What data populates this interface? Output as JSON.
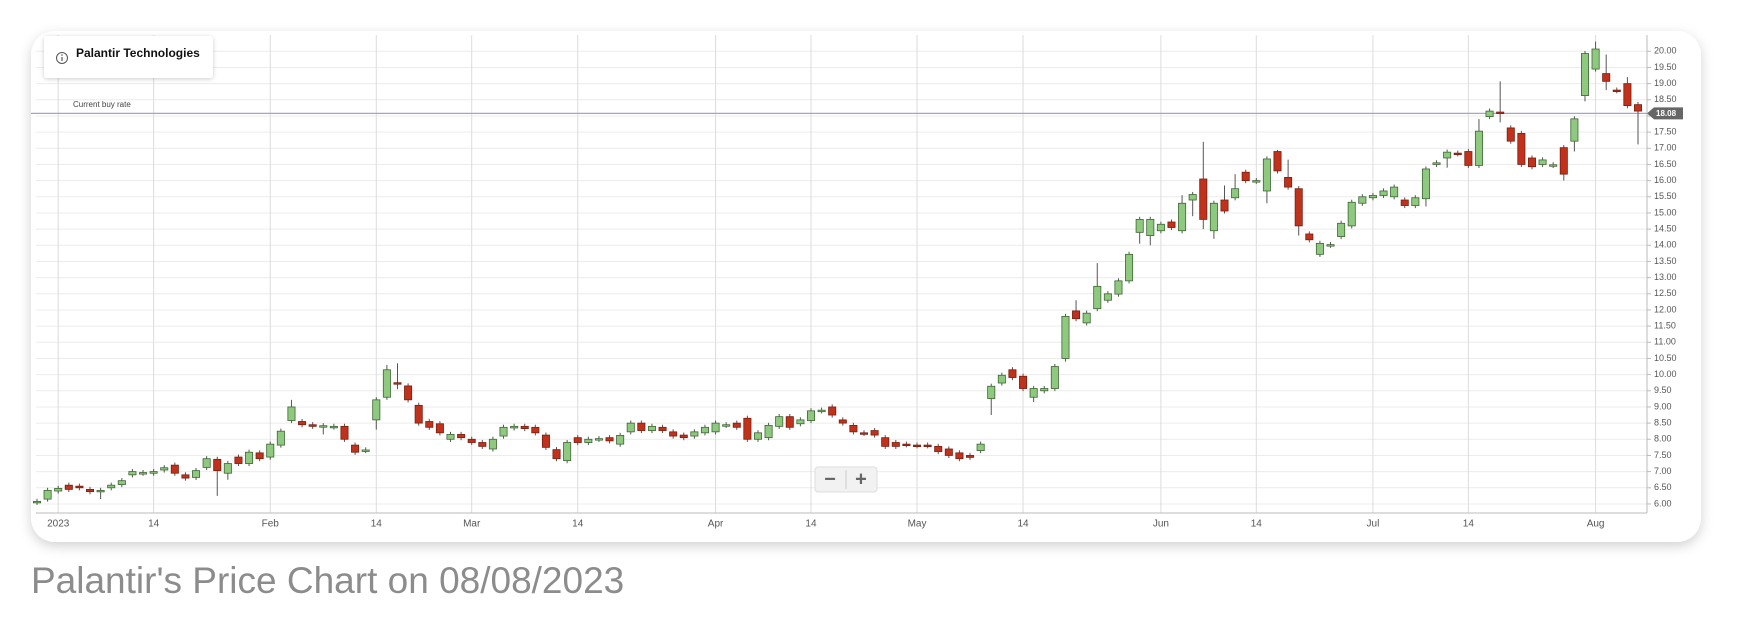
{
  "caption": "Palantir's Price Chart on 08/08/2023",
  "controls": [
    "−",
    "+"
  ],
  "chart_data": {
    "type": "candlestick",
    "categories": [
      null,
      null,
      "2023",
      null,
      null,
      null,
      null,
      null,
      null,
      null,
      null,
      "14",
      null,
      null,
      null,
      null,
      null,
      null,
      null,
      null,
      null,
      null,
      "Feb",
      null,
      null,
      null,
      null,
      null,
      null,
      null,
      null,
      null,
      "14",
      null,
      null,
      null,
      null,
      null,
      null,
      null,
      null,
      "Mar",
      null,
      null,
      null,
      null,
      null,
      null,
      null,
      null,
      null,
      "14",
      null,
      null,
      null,
      null,
      null,
      null,
      null,
      null,
      null,
      null,
      null,
      null,
      "Apr",
      null,
      null,
      null,
      null,
      null,
      null,
      null,
      null,
      "14",
      null,
      null,
      null,
      null,
      null,
      null,
      null,
      null,
      null,
      "May",
      null,
      null,
      null,
      null,
      null,
      null,
      null,
      null,
      null,
      "14",
      null,
      null,
      null,
      null,
      null,
      null,
      null,
      null,
      null,
      null,
      null,
      null,
      "Jun",
      null,
      null,
      null,
      null,
      null,
      null,
      null,
      null,
      "14",
      null,
      null,
      null,
      null,
      null,
      null,
      null,
      null,
      null,
      null,
      "Jul",
      null,
      null,
      null,
      null,
      null,
      null,
      null,
      null,
      "14",
      null,
      null,
      null,
      null,
      null,
      null,
      null,
      null,
      null,
      null,
      null,
      "Aug",
      null,
      null,
      null,
      null
    ],
    "series": [
      {
        "name": "Palantir Technologies",
        "up_color": "#8fc97f",
        "down_color": "#c0321c",
        "open": [
          6.05,
          6.15,
          6.4,
          6.58,
          6.55,
          6.45,
          6.4,
          6.5,
          6.6,
          6.9,
          6.95,
          6.95,
          7.05,
          7.2,
          6.9,
          6.82,
          7.13,
          7.38,
          6.95,
          7.45,
          7.25,
          7.58,
          7.45,
          7.82,
          8.58,
          8.55,
          8.45,
          8.4,
          8.38,
          8.4,
          7.82,
          7.65,
          8.6,
          9.3,
          9.75,
          9.65,
          9.05,
          8.55,
          8.48,
          8.0,
          8.15,
          8.0,
          7.9,
          7.7,
          8.1,
          8.35,
          8.4,
          8.37,
          8.13,
          7.68,
          7.34,
          8.05,
          7.9,
          8.0,
          8.05,
          7.85,
          8.23,
          8.5,
          8.27,
          8.37,
          8.23,
          8.13,
          8.1,
          8.2,
          8.23,
          8.43,
          8.5,
          8.65,
          8.0,
          8.05,
          8.4,
          8.7,
          8.48,
          8.58,
          8.88,
          9.0,
          8.6,
          8.43,
          8.2,
          8.27,
          8.05,
          7.9,
          7.85,
          7.82,
          7.82,
          7.78,
          7.7,
          7.58,
          7.5,
          7.65,
          9.26,
          9.74,
          10.15,
          9.95,
          9.3,
          9.5,
          9.57,
          10.5,
          11.97,
          11.6,
          12.04,
          12.3,
          12.49,
          12.9,
          14.4,
          14.3,
          14.45,
          14.72,
          14.45,
          15.4,
          16.05,
          14.45,
          15.4,
          15.47,
          16.26,
          15.98,
          15.68,
          16.9,
          16.1,
          15.75,
          14.35,
          13.72,
          14.0,
          14.27,
          14.6,
          15.3,
          15.47,
          15.54,
          15.5,
          15.4,
          15.23,
          15.44,
          16.5,
          16.7,
          16.85,
          16.9,
          16.47,
          17.98,
          18.12,
          17.63,
          17.46,
          16.7,
          16.5,
          16.47,
          17.02,
          17.22,
          18.63,
          19.45,
          19.31,
          18.8,
          19.0,
          18.35
        ],
        "high": [
          6.16,
          6.5,
          6.56,
          6.66,
          6.63,
          6.53,
          6.5,
          6.66,
          6.8,
          7.08,
          7.05,
          7.08,
          7.2,
          7.28,
          6.98,
          7.11,
          7.48,
          7.46,
          7.33,
          7.53,
          7.68,
          7.66,
          7.93,
          8.33,
          9.22,
          8.63,
          8.53,
          8.5,
          8.48,
          8.48,
          7.9,
          7.75,
          9.3,
          10.3,
          10.35,
          9.73,
          9.13,
          8.63,
          8.56,
          8.23,
          8.23,
          8.08,
          7.98,
          8.08,
          8.45,
          8.48,
          8.48,
          8.45,
          8.21,
          7.76,
          7.98,
          8.13,
          8.08,
          8.1,
          8.13,
          8.2,
          8.58,
          8.58,
          8.48,
          8.45,
          8.31,
          8.21,
          8.31,
          8.45,
          8.58,
          8.53,
          8.58,
          8.73,
          8.28,
          8.51,
          8.78,
          8.78,
          8.68,
          8.96,
          8.98,
          9.08,
          8.68,
          8.51,
          8.28,
          8.35,
          8.13,
          7.98,
          7.93,
          7.9,
          7.9,
          7.86,
          7.78,
          7.66,
          7.58,
          7.93,
          9.72,
          10.06,
          10.23,
          10.03,
          9.65,
          9.65,
          10.33,
          11.88,
          12.3,
          11.98,
          13.45,
          12.58,
          12.98,
          13.8,
          14.88,
          14.88,
          14.73,
          14.8,
          15.55,
          15.65,
          17.2,
          15.38,
          15.85,
          16.2,
          16.34,
          16.08,
          16.75,
          16.95,
          16.65,
          15.83,
          14.43,
          14.14,
          14.1,
          14.76,
          15.41,
          15.58,
          15.62,
          15.76,
          15.88,
          15.48,
          15.55,
          16.44,
          16.63,
          16.96,
          16.93,
          16.98,
          17.9,
          18.23,
          19.07,
          17.71,
          17.54,
          16.78,
          16.72,
          16.57,
          17.1,
          17.99,
          20.01,
          20.3,
          19.9,
          18.88,
          19.2,
          18.43
        ],
        "low": [
          5.97,
          6.07,
          6.32,
          6.37,
          6.42,
          6.3,
          6.15,
          6.42,
          6.52,
          6.82,
          6.87,
          6.87,
          6.97,
          6.87,
          6.72,
          6.74,
          7.05,
          6.25,
          6.75,
          7.17,
          7.17,
          7.32,
          7.37,
          7.74,
          8.5,
          8.37,
          8.32,
          8.15,
          8.3,
          7.92,
          7.52,
          7.57,
          8.3,
          9.22,
          9.55,
          9.14,
          8.42,
          8.29,
          8.12,
          7.92,
          7.97,
          7.82,
          7.7,
          7.62,
          8.02,
          8.27,
          8.25,
          8.12,
          7.67,
          7.32,
          7.26,
          7.82,
          7.82,
          7.92,
          7.87,
          7.77,
          8.15,
          8.19,
          8.19,
          8.19,
          8.02,
          7.97,
          8.02,
          8.12,
          8.15,
          8.35,
          8.29,
          7.92,
          7.92,
          7.97,
          8.32,
          8.29,
          8.4,
          8.5,
          8.8,
          8.67,
          8.42,
          8.15,
          8.1,
          8.05,
          7.7,
          7.7,
          7.75,
          7.72,
          7.72,
          7.54,
          7.42,
          7.32,
          7.36,
          7.57,
          8.75,
          9.66,
          9.83,
          9.49,
          9.15,
          9.42,
          9.49,
          10.4,
          11.65,
          11.52,
          11.96,
          12.22,
          12.41,
          12.82,
          14.05,
          14.0,
          14.37,
          14.47,
          14.37,
          14.9,
          14.5,
          14.2,
          14.98,
          15.39,
          15.92,
          15.9,
          15.3,
          16.22,
          15.72,
          14.3,
          14.09,
          13.64,
          13.92,
          14.19,
          14.52,
          15.22,
          15.39,
          15.46,
          15.42,
          15.15,
          15.15,
          15.2,
          16.42,
          16.4,
          16.75,
          16.39,
          16.39,
          17.9,
          17.8,
          17.14,
          16.42,
          16.35,
          16.42,
          16.39,
          16.0,
          16.9,
          18.45,
          19.37,
          18.8,
          18.7,
          18.24,
          17.12
        ],
        "close": [
          6.08,
          6.42,
          6.48,
          6.45,
          6.5,
          6.38,
          6.42,
          6.58,
          6.72,
          7.0,
          6.97,
          7.0,
          7.12,
          6.95,
          6.8,
          7.03,
          7.4,
          7.03,
          7.25,
          7.25,
          7.6,
          7.4,
          7.85,
          8.25,
          9.0,
          8.45,
          8.4,
          8.42,
          8.4,
          8.0,
          7.6,
          7.67,
          9.22,
          10.15,
          9.72,
          9.22,
          8.5,
          8.37,
          8.2,
          8.15,
          8.05,
          7.9,
          7.78,
          8.0,
          8.37,
          8.4,
          8.33,
          8.2,
          7.75,
          7.4,
          7.9,
          7.9,
          8.0,
          8.02,
          7.95,
          8.12,
          8.5,
          8.27,
          8.4,
          8.27,
          8.1,
          8.05,
          8.23,
          8.37,
          8.5,
          8.45,
          8.37,
          8.0,
          8.2,
          8.43,
          8.7,
          8.37,
          8.6,
          8.88,
          8.9,
          8.75,
          8.5,
          8.23,
          8.18,
          8.13,
          7.78,
          7.78,
          7.83,
          7.8,
          7.8,
          7.62,
          7.5,
          7.4,
          7.44,
          7.85,
          9.64,
          9.98,
          9.91,
          9.57,
          9.57,
          9.57,
          10.25,
          11.8,
          11.73,
          11.9,
          12.73,
          12.5,
          12.9,
          13.72,
          14.8,
          14.8,
          14.65,
          14.55,
          15.3,
          15.57,
          14.8,
          15.3,
          15.06,
          15.75,
          16.0,
          16.0,
          16.67,
          16.3,
          15.8,
          14.6,
          14.17,
          14.06,
          14.02,
          14.68,
          15.33,
          15.5,
          15.54,
          15.68,
          15.8,
          15.23,
          15.47,
          16.36,
          16.55,
          16.88,
          16.83,
          16.47,
          17.53,
          18.15,
          18.1,
          17.22,
          16.5,
          16.43,
          16.64,
          16.49,
          16.2,
          17.91,
          19.93,
          20.07,
          19.07,
          18.78,
          18.32,
          18.15
        ]
      }
    ],
    "ylim": [
      5.72,
      20.38
    ],
    "yticks": [
      {
        "value": 6,
        "label": "6.00"
      },
      {
        "value": 6.5,
        "label": "6.50"
      },
      {
        "value": 7,
        "label": "7.00"
      },
      {
        "value": 7.5,
        "label": "7.50"
      },
      {
        "value": 8,
        "label": "8.00"
      },
      {
        "value": 8.5,
        "label": "8.50"
      },
      {
        "value": 9,
        "label": "9.00"
      },
      {
        "value": 9.5,
        "label": "9.50"
      },
      {
        "value": 10,
        "label": "10.00"
      },
      {
        "value": 10.5,
        "label": "10.50"
      },
      {
        "value": 11,
        "label": "11.00"
      },
      {
        "value": 11.5,
        "label": "11.50"
      },
      {
        "value": 12,
        "label": "12.00"
      },
      {
        "value": 12.5,
        "label": "12.50"
      },
      {
        "value": 13,
        "label": "13.00"
      },
      {
        "value": 13.5,
        "label": "13.50"
      },
      {
        "value": 14,
        "label": "14.00"
      },
      {
        "value": 14.5,
        "label": "14.50"
      },
      {
        "value": 15,
        "label": "15.00"
      },
      {
        "value": 15.5,
        "label": "15.50"
      },
      {
        "value": 16,
        "label": "16.00"
      },
      {
        "value": 16.5,
        "label": "16.50"
      },
      {
        "value": 17,
        "label": "17.00"
      },
      {
        "value": 17.5,
        "label": "17.50"
      },
      {
        "value": 18,
        "label": "18.00"
      },
      {
        "value": 18.5,
        "label": "18.50"
      },
      {
        "value": 19,
        "label": "19.00"
      },
      {
        "value": 19.5,
        "label": "19.50"
      },
      {
        "value": 20,
        "label": "20.00"
      }
    ],
    "grid": true,
    "reference_line": {
      "label": "Current buy rate",
      "value": 18.08,
      "color": "#a3a6cc"
    }
  }
}
